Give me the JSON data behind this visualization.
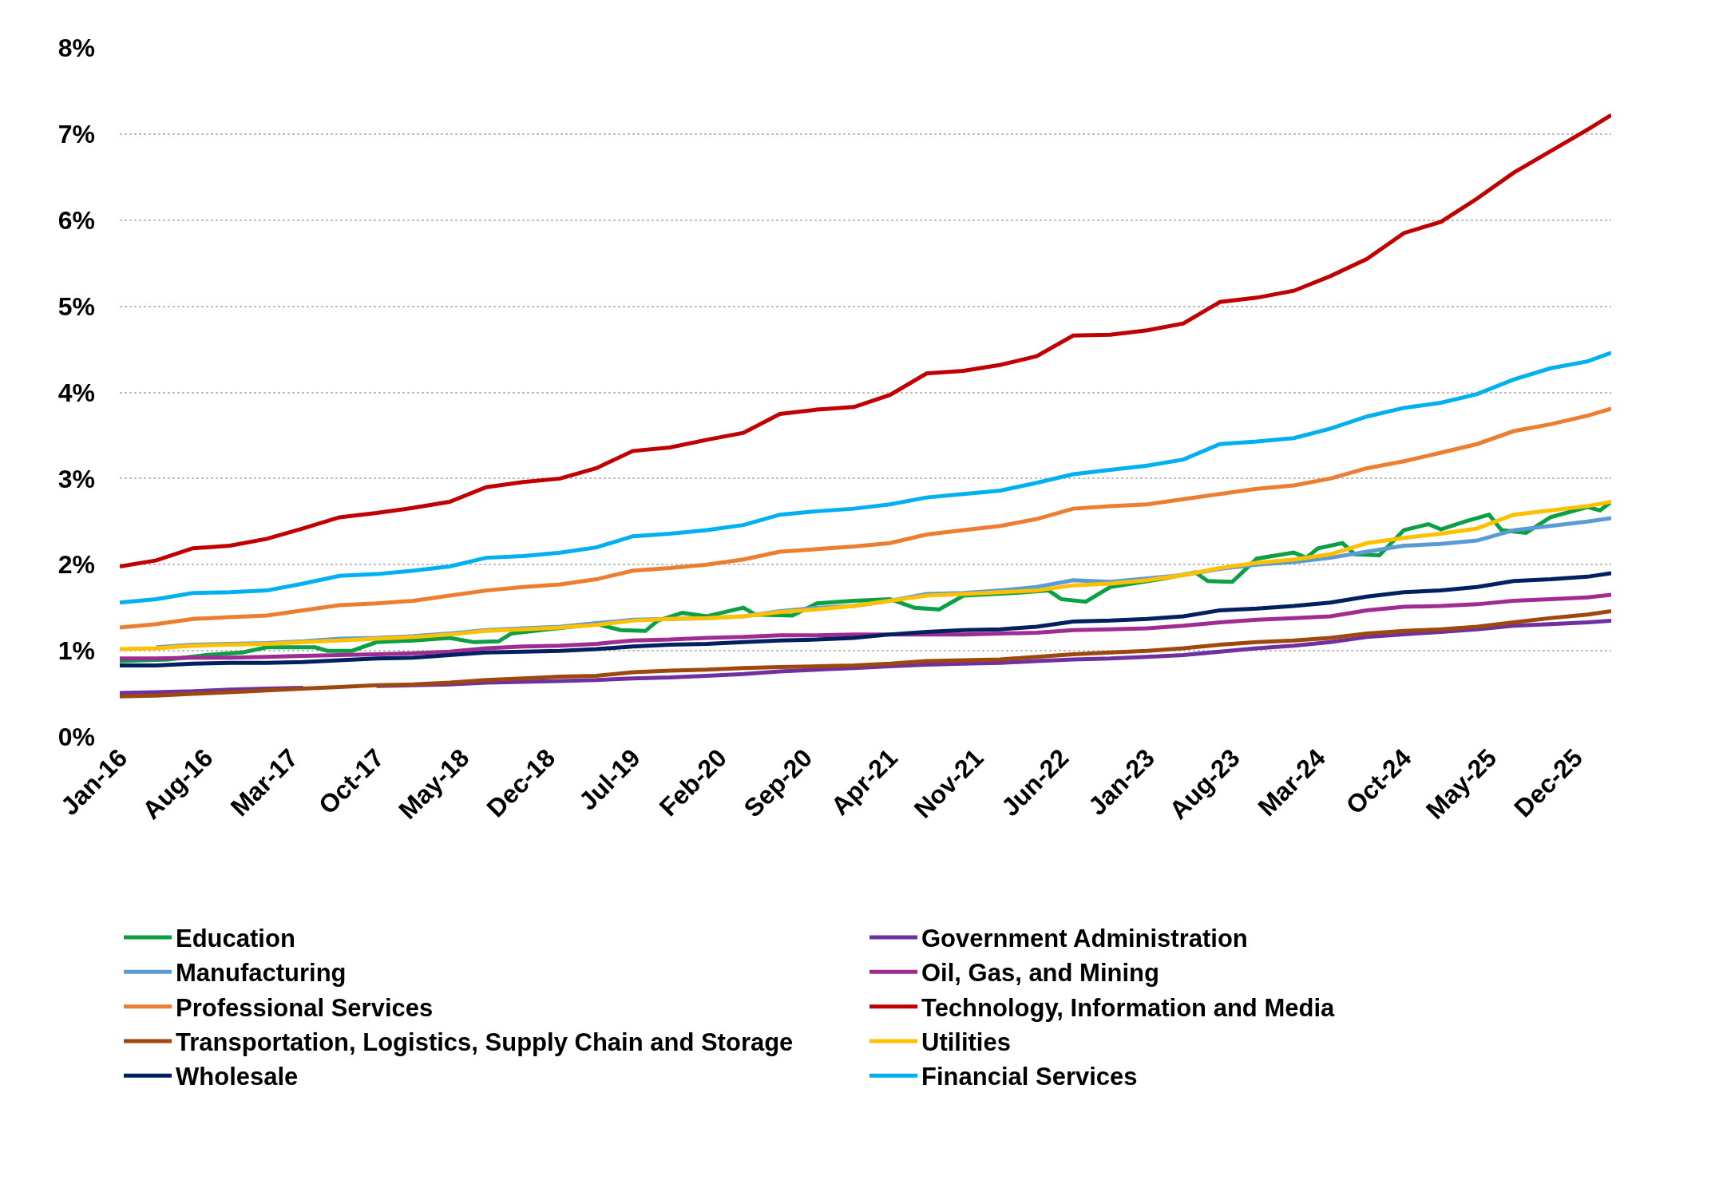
{
  "chart_data": {
    "type": "line",
    "x": [
      "2016-01",
      "2016-04",
      "2016-07",
      "2016-10",
      "2017-01",
      "2017-04",
      "2017-07",
      "2017-10",
      "2018-01",
      "2018-04",
      "2018-07",
      "2018-10",
      "2019-01",
      "2019-04",
      "2019-07",
      "2019-10",
      "2020-01",
      "2020-04",
      "2020-07",
      "2020-10",
      "2021-01",
      "2021-04",
      "2021-07",
      "2021-10",
      "2022-01",
      "2022-04",
      "2022-07",
      "2022-10",
      "2023-01",
      "2023-04",
      "2023-07",
      "2023-10",
      "2024-01",
      "2024-04",
      "2024-07",
      "2024-10",
      "2025-01",
      "2025-04",
      "2025-07",
      "2025-10",
      "2026-01",
      "2026-03"
    ],
    "xlim": [
      "2016-01",
      "2026-03"
    ],
    "xticks": [
      {
        "value": "2016-01",
        "label": "Jan-16"
      },
      {
        "value": "2016-08",
        "label": "Aug-16"
      },
      {
        "value": "2017-03",
        "label": "Mar-17"
      },
      {
        "value": "2017-10",
        "label": "Oct-17"
      },
      {
        "value": "2018-05",
        "label": "May-18"
      },
      {
        "value": "2018-12",
        "label": "Dec-18"
      },
      {
        "value": "2019-07",
        "label": "Jul-19"
      },
      {
        "value": "2020-02",
        "label": "Feb-20"
      },
      {
        "value": "2020-09",
        "label": "Sep-20"
      },
      {
        "value": "2021-04",
        "label": "Apr-21"
      },
      {
        "value": "2021-11",
        "label": "Nov-21"
      },
      {
        "value": "2022-06",
        "label": "Jun-22"
      },
      {
        "value": "2023-01",
        "label": "Jan-23"
      },
      {
        "value": "2023-08",
        "label": "Aug-23"
      },
      {
        "value": "2024-03",
        "label": "Mar-24"
      },
      {
        "value": "2024-10",
        "label": "Oct-24"
      },
      {
        "value": "2025-05",
        "label": "May-25"
      },
      {
        "value": "2025-12",
        "label": "Dec-25"
      }
    ],
    "ylim": [
      0,
      8
    ],
    "yticks": [
      {
        "value": 0,
        "label": "0%"
      },
      {
        "value": 1,
        "label": "1%"
      },
      {
        "value": 2,
        "label": "2%"
      },
      {
        "value": 3,
        "label": "3%"
      },
      {
        "value": 4,
        "label": "4%"
      },
      {
        "value": 5,
        "label": "5%"
      },
      {
        "value": 6,
        "label": "6%"
      },
      {
        "value": 7,
        "label": "7%"
      },
      {
        "value": 8,
        "label": "8%"
      }
    ],
    "grid": "y",
    "legend": "bottom",
    "marker": "none",
    "line_style": "solid",
    "series": [
      {
        "name": "Education",
        "color": "#0ca044",
        "x": [
          "2016-01",
          "2016-05",
          "2016-08",
          "2016-11",
          "2017-01",
          "2017-05",
          "2017-06",
          "2017-08",
          "2017-10",
          "2018-01",
          "2018-04",
          "2018-06",
          "2018-08",
          "2018-09",
          "2018-12",
          "2019-04",
          "2019-06",
          "2019-08",
          "2019-09",
          "2019-11",
          "2020-01",
          "2020-04",
          "2020-05",
          "2020-08",
          "2020-10",
          "2021-01",
          "2021-04",
          "2021-06",
          "2021-08",
          "2021-10",
          "2022-02",
          "2022-05",
          "2022-06",
          "2022-08",
          "2022-10",
          "2023-02",
          "2023-05",
          "2023-06",
          "2023-08",
          "2023-10",
          "2024-01",
          "2024-02",
          "2024-03",
          "2024-05",
          "2024-06",
          "2024-08",
          "2024-10",
          "2024-12",
          "2025-01",
          "2025-03",
          "2025-05",
          "2025-06",
          "2025-08",
          "2025-10",
          "2026-01",
          "2026-02",
          "2026-03"
        ],
        "values": [
          0.88,
          0.9,
          0.95,
          0.98,
          1.04,
          1.04,
          1.0,
          1.0,
          1.1,
          1.12,
          1.15,
          1.1,
          1.11,
          1.2,
          1.25,
          1.31,
          1.24,
          1.23,
          1.35,
          1.44,
          1.4,
          1.5,
          1.42,
          1.41,
          1.55,
          1.58,
          1.6,
          1.5,
          1.48,
          1.64,
          1.67,
          1.7,
          1.6,
          1.57,
          1.74,
          1.83,
          1.91,
          1.81,
          1.8,
          2.07,
          2.14,
          2.08,
          2.19,
          2.25,
          2.12,
          2.11,
          2.4,
          2.47,
          2.41,
          2.5,
          2.58,
          2.4,
          2.37,
          2.55,
          2.67,
          2.63,
          2.73
        ]
      },
      {
        "name": "Government Administration",
        "color": "#7030a0",
        "values": [
          0.51,
          0.52,
          0.53,
          0.55,
          0.56,
          0.57,
          null,
          0.59,
          0.6,
          0.61,
          0.63,
          0.64,
          0.65,
          0.66,
          0.68,
          0.69,
          0.71,
          0.73,
          0.76,
          0.78,
          0.8,
          0.82,
          0.84,
          0.85,
          0.86,
          0.88,
          0.9,
          0.91,
          0.93,
          0.95,
          0.99,
          1.03,
          1.06,
          1.1,
          1.16,
          1.19,
          1.22,
          1.25,
          1.29,
          1.31,
          1.33,
          1.35
        ]
      },
      {
        "name": "Manufacturing",
        "color": "#5b9bd5",
        "values": [
          null,
          1.04,
          1.07,
          1.08,
          1.09,
          1.11,
          1.14,
          1.15,
          1.17,
          1.2,
          1.24,
          1.26,
          1.28,
          1.32,
          1.36,
          1.37,
          1.38,
          1.4,
          1.46,
          1.5,
          1.52,
          1.58,
          1.66,
          1.67,
          1.7,
          1.74,
          1.82,
          1.8,
          1.84,
          1.88,
          1.95,
          2.0,
          2.03,
          2.08,
          2.15,
          2.22,
          2.24,
          2.28,
          2.4,
          2.45,
          2.5,
          2.54
        ]
      },
      {
        "name": "Oil, Gas, and Mining",
        "color": "#a02b93",
        "values": [
          0.91,
          0.91,
          0.92,
          0.92,
          0.93,
          0.94,
          0.95,
          0.96,
          0.97,
          0.99,
          1.03,
          1.05,
          1.06,
          1.08,
          1.12,
          1.13,
          1.15,
          1.16,
          1.18,
          1.18,
          1.19,
          1.19,
          1.19,
          1.19,
          1.2,
          1.21,
          1.24,
          1.25,
          1.26,
          1.29,
          1.33,
          1.36,
          1.38,
          1.4,
          1.47,
          1.51,
          1.52,
          1.54,
          1.58,
          1.6,
          1.62,
          1.65
        ]
      },
      {
        "name": "Professional Services",
        "color": "#ed7d31",
        "values": [
          1.27,
          1.31,
          1.37,
          1.39,
          1.41,
          1.47,
          1.53,
          1.55,
          1.58,
          1.64,
          1.7,
          1.74,
          1.77,
          1.83,
          1.93,
          1.96,
          2.0,
          2.06,
          2.15,
          2.18,
          2.21,
          2.25,
          2.35,
          2.4,
          2.45,
          2.53,
          2.65,
          2.68,
          2.7,
          2.76,
          2.82,
          2.88,
          2.92,
          3.0,
          3.12,
          3.2,
          3.3,
          3.4,
          3.55,
          3.63,
          3.73,
          3.81
        ]
      },
      {
        "name": "Technology, Information and Media",
        "color": "#c00000",
        "values": [
          1.98,
          2.05,
          2.19,
          2.22,
          2.3,
          2.42,
          2.55,
          2.6,
          2.66,
          2.73,
          2.9,
          2.96,
          3.0,
          3.12,
          3.32,
          3.36,
          3.45,
          3.53,
          3.75,
          3.8,
          3.83,
          3.97,
          4.22,
          4.25,
          4.32,
          4.42,
          4.66,
          4.67,
          4.72,
          4.8,
          5.05,
          5.1,
          5.18,
          5.35,
          5.55,
          5.85,
          5.98,
          6.25,
          6.55,
          6.8,
          7.05,
          7.22
        ]
      },
      {
        "name": "Transportation, Logistics, Supply Chain and Storage",
        "color": "#9e480e",
        "values": [
          0.47,
          0.48,
          0.5,
          0.52,
          0.54,
          0.56,
          0.58,
          0.6,
          0.61,
          0.63,
          0.66,
          0.68,
          0.7,
          0.71,
          0.75,
          0.77,
          0.78,
          0.8,
          0.81,
          0.82,
          0.83,
          0.85,
          0.88,
          0.89,
          0.9,
          0.93,
          0.96,
          0.98,
          1.0,
          1.03,
          1.07,
          1.1,
          1.12,
          1.15,
          1.2,
          1.23,
          1.25,
          1.28,
          1.33,
          1.38,
          1.42,
          1.46
        ]
      },
      {
        "name": "Utilities",
        "color": "#ffc000",
        "values": [
          1.02,
          1.03,
          1.06,
          1.07,
          1.08,
          1.1,
          1.12,
          1.14,
          1.16,
          1.19,
          1.23,
          1.25,
          1.27,
          1.3,
          1.35,
          1.37,
          1.38,
          1.4,
          1.45,
          1.48,
          1.52,
          1.58,
          1.64,
          1.66,
          1.68,
          1.7,
          1.76,
          1.78,
          1.82,
          1.88,
          1.96,
          2.02,
          2.06,
          2.12,
          2.25,
          2.31,
          2.36,
          2.42,
          2.58,
          2.63,
          2.68,
          2.73
        ]
      },
      {
        "name": "Wholesale",
        "color": "#002060",
        "values": [
          0.83,
          0.83,
          0.85,
          0.86,
          0.86,
          0.87,
          0.89,
          0.91,
          0.92,
          0.95,
          0.98,
          0.99,
          1.0,
          1.02,
          1.05,
          1.07,
          1.08,
          1.1,
          1.12,
          1.13,
          1.15,
          1.19,
          1.22,
          1.24,
          1.25,
          1.28,
          1.34,
          1.35,
          1.37,
          1.4,
          1.47,
          1.49,
          1.52,
          1.56,
          1.63,
          1.68,
          1.7,
          1.74,
          1.81,
          1.83,
          1.86,
          1.9
        ]
      },
      {
        "name": "Financial Services",
        "color": "#00b0f0",
        "values": [
          1.56,
          1.6,
          1.67,
          1.68,
          1.7,
          1.78,
          1.87,
          1.89,
          1.93,
          1.98,
          2.08,
          2.1,
          2.14,
          2.2,
          2.33,
          2.36,
          2.4,
          2.46,
          2.58,
          2.62,
          2.65,
          2.7,
          2.78,
          2.82,
          2.86,
          2.95,
          3.05,
          3.1,
          3.15,
          3.22,
          3.4,
          3.43,
          3.47,
          3.58,
          3.72,
          3.82,
          3.88,
          3.98,
          4.15,
          4.28,
          4.36,
          4.46
        ]
      }
    ]
  }
}
